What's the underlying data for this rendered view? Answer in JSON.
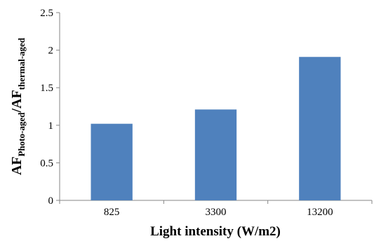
{
  "chart_data": {
    "type": "bar",
    "categories": [
      "825",
      "3300",
      "13200"
    ],
    "values": [
      1.02,
      1.21,
      1.91
    ],
    "ylim": [
      0,
      2.5
    ],
    "yticks": [
      "0",
      "0.5",
      "1",
      "1.5",
      "2",
      "2.5"
    ],
    "xlabel": "Light intensity (W/m2)",
    "ylabel": {
      "main_1": "AF",
      "sub_1": "Photo-aged",
      "main_2": "/AF",
      "sub_2": "thermal-aged"
    },
    "bar_color": "#4F81BD",
    "axis_color": "#868686",
    "grid": false,
    "legend": "none"
  }
}
